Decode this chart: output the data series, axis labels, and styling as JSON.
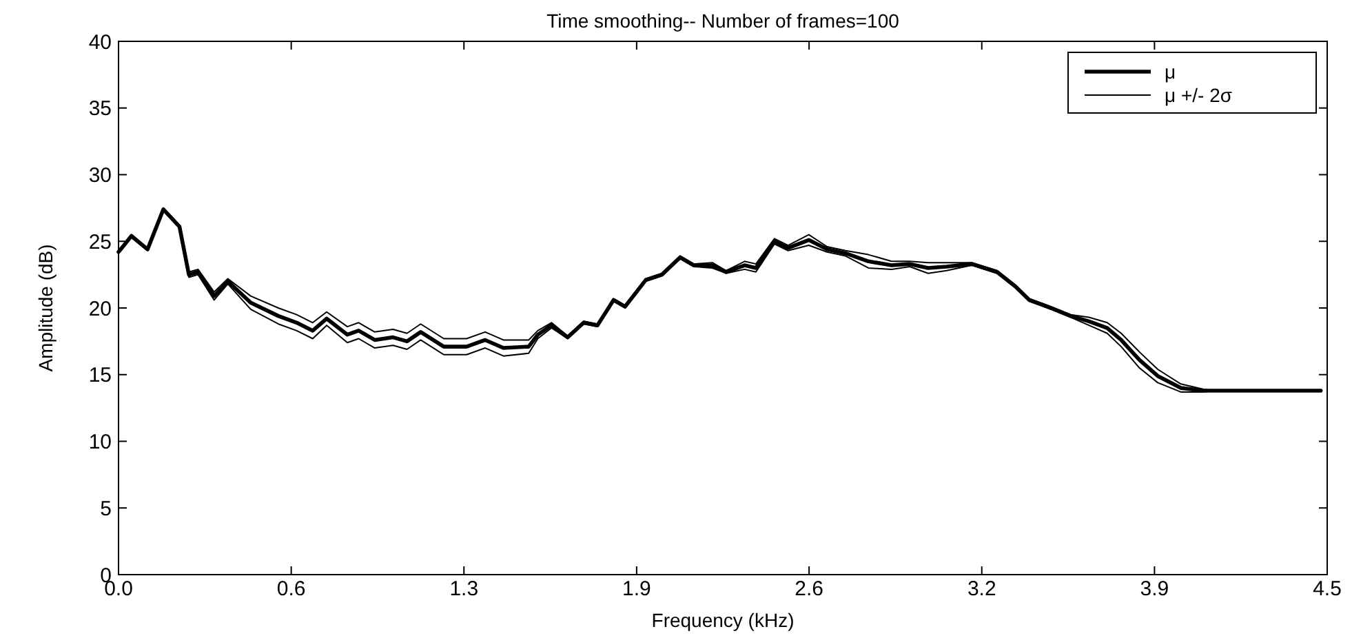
{
  "chart_data": {
    "type": "line",
    "title": "Time smoothing-- Number of frames=100",
    "xlabel": "Frequency (kHz)",
    "ylabel": "Amplitude (dB)",
    "x": [
      0,
      0.048,
      0.108,
      0.167,
      0.227,
      0.262,
      0.296,
      0.356,
      0.407,
      0.492,
      0.595,
      0.663,
      0.723,
      0.775,
      0.852,
      0.894,
      0.954,
      1.022,
      1.074,
      1.125,
      1.211,
      1.296,
      1.365,
      1.433,
      1.527,
      1.561,
      1.612,
      1.672,
      1.732,
      1.783,
      1.843,
      1.886,
      1.963,
      2.023,
      2.091,
      2.142,
      2.211,
      2.262,
      2.331,
      2.373,
      2.442,
      2.493,
      2.57,
      2.638,
      2.707,
      2.792,
      2.878,
      2.946,
      3.014,
      3.083,
      3.177,
      3.271,
      3.34,
      3.391,
      3.459,
      3.545,
      3.613,
      3.681,
      3.733,
      3.801,
      3.869,
      3.955,
      4.04,
      4.075,
      4.476
    ],
    "series": [
      {
        "name": "μ",
        "color": "#000000",
        "values": [
          24.2,
          25.4,
          24.4,
          27.4,
          26.1,
          22.5,
          22.7,
          20.9,
          22.0,
          20.4,
          19.4,
          18.9,
          18.3,
          19.2,
          18.0,
          18.3,
          17.6,
          17.8,
          17.5,
          18.2,
          17.1,
          17.1,
          17.6,
          17.0,
          17.1,
          18.0,
          18.7,
          17.8,
          18.9,
          18.7,
          20.6,
          20.1,
          22.1,
          22.5,
          23.8,
          23.2,
          23.2,
          22.7,
          23.2,
          23.0,
          25.0,
          24.5,
          25.1,
          24.4,
          24.1,
          23.5,
          23.2,
          23.3,
          23.0,
          23.1,
          23.3,
          22.7,
          21.6,
          20.6,
          20.1,
          19.4,
          19.0,
          18.5,
          17.6,
          16.1,
          14.9,
          14.0,
          13.8,
          13.8,
          13.8
        ]
      },
      {
        "name": "μ +/- 2σ",
        "color": "#000000",
        "values": [
          24.3,
          25.5,
          24.5,
          27.5,
          26.2,
          22.7,
          22.9,
          21.2,
          22.2,
          20.9,
          20.0,
          19.5,
          18.9,
          19.7,
          18.6,
          18.9,
          18.2,
          18.4,
          18.1,
          18.8,
          17.7,
          17.7,
          18.2,
          17.6,
          17.6,
          18.3,
          18.9,
          17.9,
          19.0,
          18.8,
          20.7,
          20.2,
          22.2,
          22.6,
          23.9,
          23.3,
          23.4,
          22.8,
          23.5,
          23.3,
          25.2,
          24.7,
          25.5,
          24.6,
          24.3,
          24.0,
          23.5,
          23.5,
          23.4,
          23.4,
          23.4,
          22.8,
          21.7,
          20.7,
          20.2,
          19.5,
          19.3,
          18.9,
          18.1,
          16.7,
          15.4,
          14.3,
          13.9,
          13.8,
          13.8
        ]
      },
      {
        "color": "#000000",
        "values": [
          24.1,
          25.3,
          24.3,
          27.3,
          26.0,
          22.3,
          22.5,
          20.6,
          21.8,
          19.9,
          18.8,
          18.3,
          17.7,
          18.7,
          17.4,
          17.7,
          17.0,
          17.2,
          16.9,
          17.6,
          16.5,
          16.5,
          17.0,
          16.4,
          16.6,
          17.7,
          18.5,
          17.7,
          18.8,
          18.6,
          20.5,
          20.0,
          22.0,
          22.4,
          23.7,
          23.1,
          23.0,
          22.6,
          22.9,
          22.7,
          24.8,
          24.3,
          24.7,
          24.2,
          23.9,
          23.0,
          22.9,
          23.1,
          22.6,
          22.8,
          23.2,
          22.6,
          21.5,
          20.5,
          20.0,
          19.3,
          18.7,
          18.1,
          17.1,
          15.5,
          14.4,
          13.7,
          13.7,
          13.8,
          13.8
        ]
      }
    ],
    "xlim": [
      0,
      4.5
    ],
    "ylim": [
      0,
      40
    ],
    "xticks": [
      {
        "value": 0,
        "label": "0.0"
      },
      {
        "value": 0.643,
        "label": "0.6"
      },
      {
        "value": 1.286,
        "label": "1.3"
      },
      {
        "value": 1.929,
        "label": "1.9"
      },
      {
        "value": 2.571,
        "label": "2.6"
      },
      {
        "value": 3.214,
        "label": "3.2"
      },
      {
        "value": 3.857,
        "label": "3.9"
      },
      {
        "value": 4.5,
        "label": "4.5"
      }
    ],
    "yticks": [
      0,
      5,
      10,
      15,
      20,
      25,
      30,
      35,
      40
    ],
    "legend": "top right",
    "grid": false
  }
}
